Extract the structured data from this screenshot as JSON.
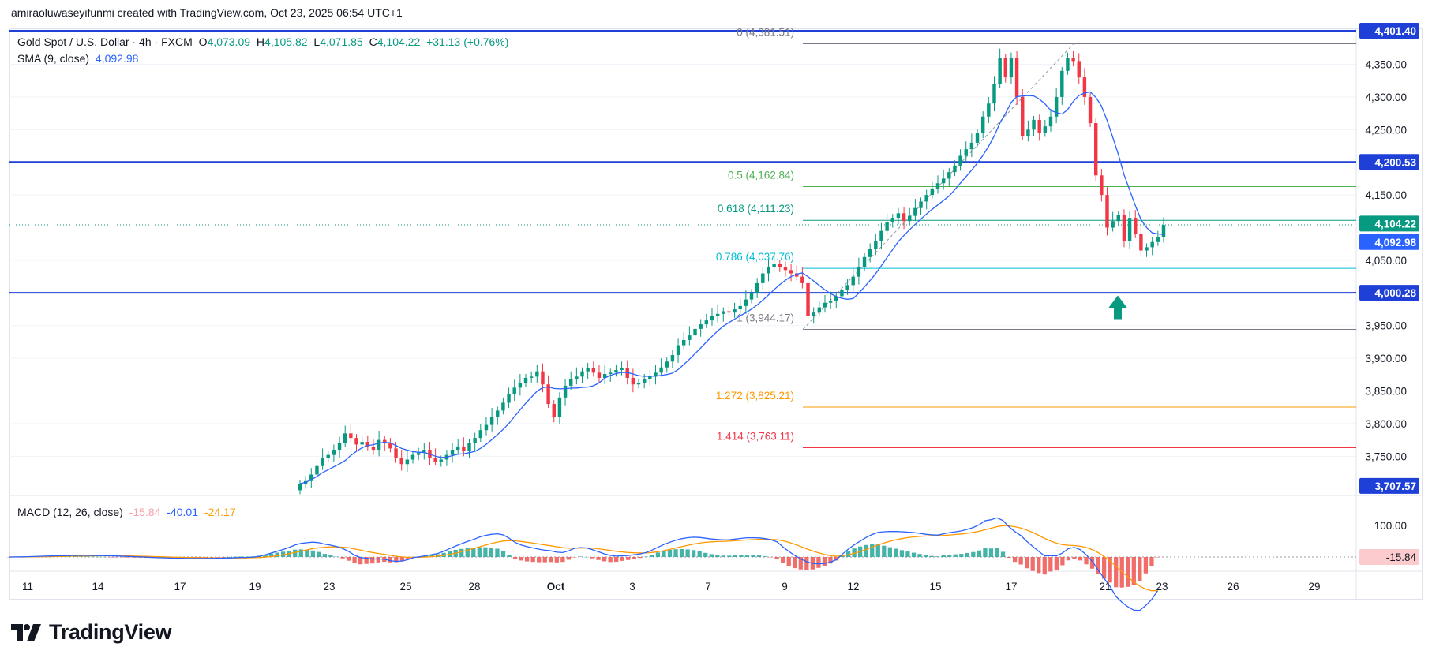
{
  "attribution": "amiraoluwaseyifunmi created with TradingView.com, Oct 23, 2025 06:54 UTC+1",
  "legend": {
    "symbol": "Gold Spot / U.S. Dollar · 4h · FXCM",
    "open_label": "O",
    "open": "4,073.09",
    "high_label": "H",
    "high": "4,105.82",
    "low_label": "L",
    "low": "4,071.85",
    "close_label": "C",
    "close": "4,104.22",
    "change": "+31.13 (+0.76%)",
    "sma_label": "SMA (9, close)",
    "sma_value": "4,092.98",
    "macd_label": "MACD (12, 26, close)",
    "macd_hist": "-15.84",
    "macd_line": "-40.01",
    "macd_signal": "-24.17"
  },
  "brand": {
    "name": "TradingView"
  },
  "colors": {
    "up": "#089981",
    "down": "#f23645",
    "sma": "#2962ff",
    "hline": "#1e40d6",
    "macd_signal": "#ff9800"
  },
  "chart_data": {
    "type": "candlestick",
    "title": "Gold Spot / U.S. Dollar · 4h · FXCM",
    "ylim": [
      3690,
      4405
    ],
    "y_ticks": [
      "4,350.00",
      "4,300.00",
      "4,250.00",
      "4,150.00",
      "4,050.00",
      "3,950.00",
      "3,900.00",
      "3,850.00",
      "3,800.00",
      "3,750.00"
    ],
    "y_tick_values": [
      4350,
      4300,
      4250,
      4150,
      4050,
      3950,
      3900,
      3850,
      3800,
      3750
    ],
    "x_ticks": [
      "11",
      "14",
      "17",
      "19",
      "23",
      "25",
      "28",
      "Oct",
      "3",
      "7",
      "9",
      "12",
      "15",
      "17",
      "21",
      "23",
      "26",
      "29"
    ],
    "candles_close_path": [
      3708,
      3712,
      3722,
      3735,
      3748,
      3752,
      3760,
      3770,
      3785,
      3778,
      3768,
      3772,
      3765,
      3760,
      3775,
      3770,
      3762,
      3748,
      3738,
      3745,
      3752,
      3755,
      3760,
      3748,
      3742,
      3745,
      3752,
      3760,
      3765,
      3758,
      3770,
      3778,
      3790,
      3798,
      3810,
      3820,
      3832,
      3845,
      3855,
      3862,
      3870,
      3872,
      3880,
      3860,
      3830,
      3810,
      3840,
      3858,
      3868,
      3872,
      3880,
      3885,
      3878,
      3870,
      3876,
      3878,
      3882,
      3885,
      3870,
      3860,
      3862,
      3868,
      3872,
      3878,
      3886,
      3895,
      3905,
      3920,
      3928,
      3935,
      3945,
      3952,
      3958,
      3965,
      3968,
      3972,
      3970,
      3975,
      3980,
      3990,
      4000,
      4015,
      4030,
      4040,
      4045,
      4040,
      4035,
      4030,
      4025,
      4015,
      3965,
      3970,
      3978,
      3985,
      3988,
      3995,
      4005,
      4012,
      4025,
      4040,
      4055,
      4068,
      4080,
      4095,
      4108,
      4115,
      4122,
      4110,
      4118,
      4130,
      4140,
      4150,
      4160,
      4168,
      4175,
      4185,
      4195,
      4210,
      4220,
      4230,
      4245,
      4270,
      4290,
      4320,
      4360,
      4330,
      4360,
      4300,
      4240,
      4250,
      4265,
      4245,
      4255,
      4270,
      4300,
      4340,
      4360,
      4355,
      4330,
      4300,
      4260,
      4180,
      4150,
      4100,
      4110,
      4120,
      4080,
      4115,
      4090,
      4065,
      4070,
      4078,
      4085,
      4104
    ],
    "horizontal_levels": [
      {
        "label": "4,401.40",
        "value": 4401.4
      },
      {
        "label": "4,200.53",
        "value": 4200.53
      },
      {
        "label": "4,000.28",
        "value": 4000.28
      }
    ],
    "current_price": {
      "label": "4,104.22",
      "value": 4104.22
    },
    "sma_current": {
      "label": "4,092.98",
      "value": 4092.98
    },
    "lowest_visible": {
      "label": "3,707.57",
      "value": 3707.57
    },
    "fibonacci": [
      {
        "ratio": "0",
        "label": "0 (4,381.51)",
        "value": 4381.51,
        "color": "#787b86"
      },
      {
        "ratio": "0.5",
        "label": "0.5 (4,162.84)",
        "value": 4162.84,
        "color": "#4caf50"
      },
      {
        "ratio": "0.618",
        "label": "0.618 (4,111.23)",
        "value": 4111.23,
        "color": "#089981"
      },
      {
        "ratio": "0.786",
        "label": "0.786 (4,037.76)",
        "value": 4037.76,
        "color": "#00bcd4"
      },
      {
        "ratio": "1",
        "label": "1 (3,944.17)",
        "value": 3944.17,
        "color": "#787b86"
      },
      {
        "ratio": "1.272",
        "label": "1.272 (3,825.21)",
        "value": 3825.21,
        "color": "#ff9800"
      },
      {
        "ratio": "1.414",
        "label": "1.414 (3,763.11)",
        "value": 3763.11,
        "color": "#f23645"
      }
    ],
    "annotation": {
      "type": "up-arrow",
      "near_value": 3960
    },
    "macd": {
      "tick": "100.00",
      "current_hist_label": "-15.84",
      "macd_line_last": -40.01,
      "signal_last": -24.17,
      "hist_last": -15.84
    }
  }
}
